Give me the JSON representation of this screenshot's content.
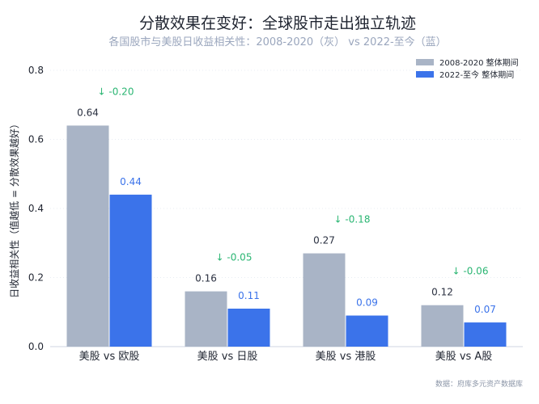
{
  "chart_data": {
    "type": "bar",
    "title": "分散效果在变好：全球股市走出独立轨迹",
    "subtitle": "各国股市与美股日收益相关性：2008-2020（灰） vs 2022-至今（蓝）",
    "ylabel": "日收益相关性（值越低 = 分散效果越好）",
    "xlabel": "",
    "ylim": [
      0,
      0.8
    ],
    "yticks": [
      0.0,
      0.2,
      0.4,
      0.6,
      0.8
    ],
    "ytick_labels": [
      "0.0",
      "0.2",
      "0.4",
      "0.6",
      "0.8"
    ],
    "categories": [
      "美股 vs 欧股",
      "美股 vs 日股",
      "美股 vs 港股",
      "美股 vs A股"
    ],
    "series": [
      {
        "name": "2008-2020 整体期间",
        "values": [
          0.64,
          0.16,
          0.27,
          0.12
        ],
        "labels": [
          "0.64",
          "0.16",
          "0.27",
          "0.12"
        ],
        "color": "#a9b4c6",
        "label_color": "#2a3040"
      },
      {
        "name": "2022-至今 整体期间",
        "values": [
          0.44,
          0.11,
          0.09,
          0.07
        ],
        "labels": [
          "0.44",
          "0.11",
          "0.09",
          "0.07"
        ],
        "color": "#3b73ea",
        "label_color": "#3b73ea"
      }
    ],
    "change_labels": [
      "↓ -0.20",
      "↓ -0.05",
      "↓ -0.18",
      "↓ -0.06"
    ],
    "change_color": "#2bb673",
    "legend_position": "top-right",
    "grid": true,
    "source": "数据：府库多元资产数据库"
  }
}
